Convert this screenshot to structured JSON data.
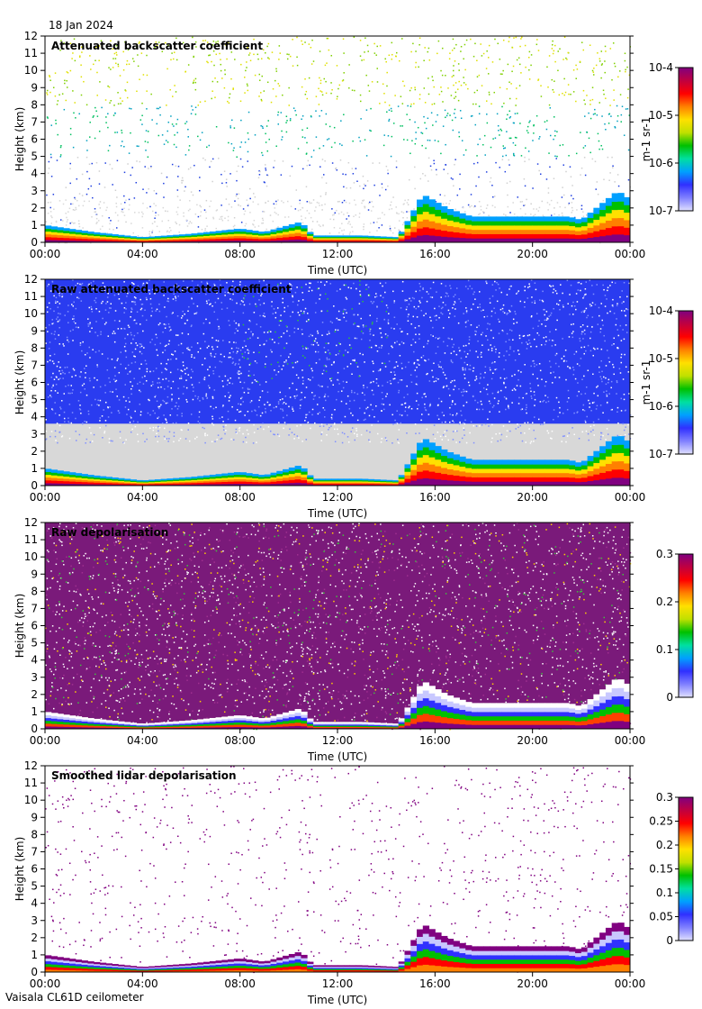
{
  "header": {
    "date": "18 Jan 2024"
  },
  "footer": {
    "instrument": "Vaisala CL61D ceilometer"
  },
  "colors": {
    "rainbow": [
      "#ffffff",
      "#c8c8ff",
      "#3030ff",
      "#00a0ff",
      "#00e0a0",
      "#00c000",
      "#c0e000",
      "#ffe000",
      "#ff8000",
      "#ff0000",
      "#a00060",
      "#800080"
    ],
    "grey": "#d8d8d8"
  },
  "chart_data": [
    {
      "type": "heatmap",
      "title": "Attenuated backscatter coefficient",
      "xlabel": "Time (UTC)",
      "ylabel": "Height (km)",
      "x_ticks": [
        "00:00",
        "04:00",
        "08:00",
        "12:00",
        "16:00",
        "20:00",
        "00:00"
      ],
      "xlim_hours": [
        0,
        24
      ],
      "y_ticks": [
        "0",
        "1",
        "2",
        "3",
        "4",
        "5",
        "6",
        "7",
        "8",
        "9",
        "10",
        "11",
        "12"
      ],
      "ylim": [
        0,
        12
      ],
      "colorbar": {
        "scale": "log",
        "ticks": [
          "10-7",
          "10-6",
          "10-5",
          "10-4"
        ],
        "unit": "m-1 sr-1",
        "range": [
          1e-07,
          0.0001
        ]
      },
      "cloud_top_km": [
        [
          0,
          1.0
        ],
        [
          2,
          0.6
        ],
        [
          4,
          0.3
        ],
        [
          6,
          0.5
        ],
        [
          8,
          0.8
        ],
        [
          9,
          0.6
        ],
        [
          10.5,
          1.2
        ],
        [
          11,
          0.4
        ],
        [
          13,
          0.4
        ],
        [
          14.5,
          0.3
        ],
        [
          15.5,
          2.8
        ],
        [
          16.5,
          2.0
        ],
        [
          17.5,
          1.5
        ],
        [
          21.5,
          1.5
        ],
        [
          22,
          1.3
        ],
        [
          23.5,
          3.0
        ],
        [
          24,
          2.5
        ]
      ]
    },
    {
      "type": "heatmap",
      "title": "Raw attenuated backscatter coefficient",
      "xlabel": "Time (UTC)",
      "ylabel": "Height (km)",
      "x_ticks": [
        "00:00",
        "04:00",
        "08:00",
        "12:00",
        "16:00",
        "20:00",
        "00:00"
      ],
      "xlim_hours": [
        0,
        24
      ],
      "y_ticks": [
        "0",
        "1",
        "2",
        "3",
        "4",
        "5",
        "6",
        "7",
        "8",
        "9",
        "10",
        "11",
        "12"
      ],
      "ylim": [
        0,
        12
      ],
      "colorbar": {
        "scale": "log",
        "ticks": [
          "10-7",
          "10-6",
          "10-5",
          "10-4"
        ],
        "unit": "m-1 sr-1",
        "range": [
          1e-07,
          0.0001
        ]
      }
    },
    {
      "type": "heatmap",
      "title": "Raw depolarisation",
      "xlabel": "Time (UTC)",
      "ylabel": "Height (km)",
      "x_ticks": [
        "00:00",
        "04:00",
        "08:00",
        "12:00",
        "16:00",
        "20:00",
        "00:00"
      ],
      "xlim_hours": [
        0,
        24
      ],
      "y_ticks": [
        "0",
        "1",
        "2",
        "3",
        "4",
        "5",
        "6",
        "7",
        "8",
        "9",
        "10",
        "11",
        "12"
      ],
      "ylim": [
        0,
        12
      ],
      "colorbar": {
        "scale": "linear",
        "ticks": [
          "0",
          "0.1",
          "0.2",
          "0.3"
        ],
        "unit": "",
        "range": [
          0,
          0.3
        ]
      }
    },
    {
      "type": "heatmap",
      "title": "Smoothed lidar depolarisation",
      "xlabel": "Time (UTC)",
      "ylabel": "Height (km)",
      "x_ticks": [
        "00:00",
        "04:00",
        "08:00",
        "12:00",
        "16:00",
        "20:00",
        "00:00"
      ],
      "xlim_hours": [
        0,
        24
      ],
      "y_ticks": [
        "0",
        "1",
        "2",
        "3",
        "4",
        "5",
        "6",
        "7",
        "8",
        "9",
        "10",
        "11",
        "12"
      ],
      "ylim": [
        0,
        12
      ],
      "colorbar": {
        "scale": "linear",
        "ticks": [
          "0",
          "0.05",
          "0.1",
          "0.15",
          "0.2",
          "0.25",
          "0.3"
        ],
        "unit": "",
        "range": [
          0,
          0.3
        ]
      }
    }
  ]
}
